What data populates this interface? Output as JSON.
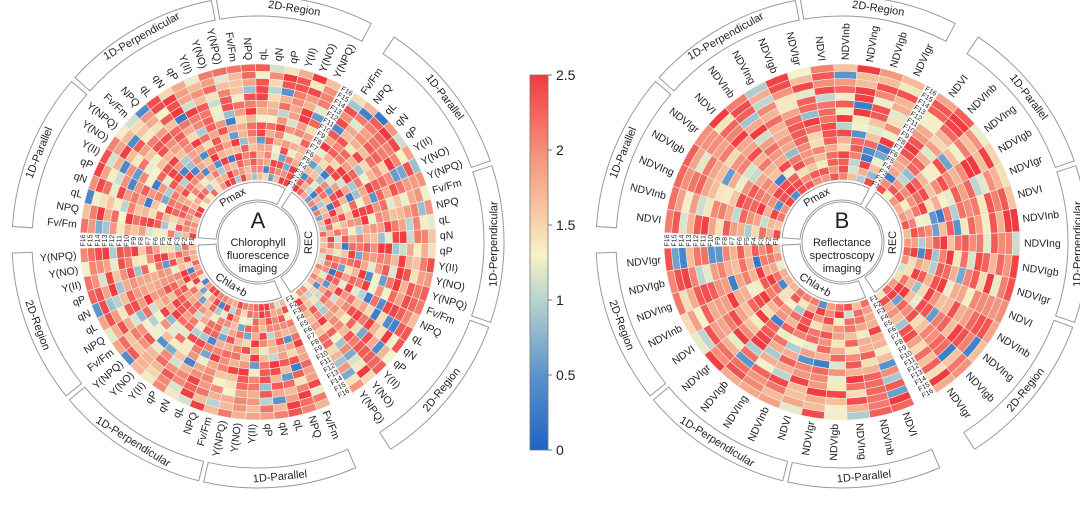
{
  "chart_data": {
    "type": "heatmap",
    "subtype": "circular",
    "colorbar": {
      "min": 0,
      "max": 2.5,
      "ticks": [
        "0",
        "0.5",
        "1",
        "1.5",
        "2",
        "2.5"
      ],
      "stops": [
        {
          "v": 0,
          "color": "#1f63c6"
        },
        {
          "v": 0.5,
          "color": "#5b93c9"
        },
        {
          "v": 1,
          "color": "#b9d3cf"
        },
        {
          "v": 1.3,
          "color": "#f6f3c6"
        },
        {
          "v": 1.6,
          "color": "#f7c6a0"
        },
        {
          "v": 2,
          "color": "#f58e79"
        },
        {
          "v": 2.5,
          "color": "#f23b3f"
        }
      ]
    },
    "rings": [
      "F1",
      "F2",
      "F3",
      "F4",
      "F5",
      "F6",
      "F7",
      "F8",
      "F9",
      "F10",
      "F11",
      "F12",
      "F13",
      "F14",
      "F15",
      "F16"
    ],
    "panels": [
      {
        "letter": "A",
        "center_lines": [
          "Chlorophyll",
          "fluorescence",
          "imaging"
        ],
        "sectors": [
          "Pmax",
          "REC",
          "Chla+b"
        ],
        "groups": [
          "1D-Parallel",
          "1D-Perpendicular",
          "2D-Region"
        ],
        "features": [
          "Fv/Fm",
          "NPQ",
          "qL",
          "qN",
          "qP",
          "Y(II)",
          "Y(NO)",
          "Y(NPQ)"
        ],
        "seed": 17
      },
      {
        "letter": "B",
        "center_lines": [
          "Reflectance",
          "spectroscopy",
          "imaging"
        ],
        "sectors": [
          "Pmax",
          "REC",
          "Chla+b"
        ],
        "groups": [
          "1D-Parallel",
          "1D-Perpendicular",
          "2D-Region"
        ],
        "features": [
          "NDVI",
          "NDVInb",
          "NDVIng",
          "NDVIgb",
          "NDVIgr"
        ],
        "seed": 41
      }
    ]
  }
}
